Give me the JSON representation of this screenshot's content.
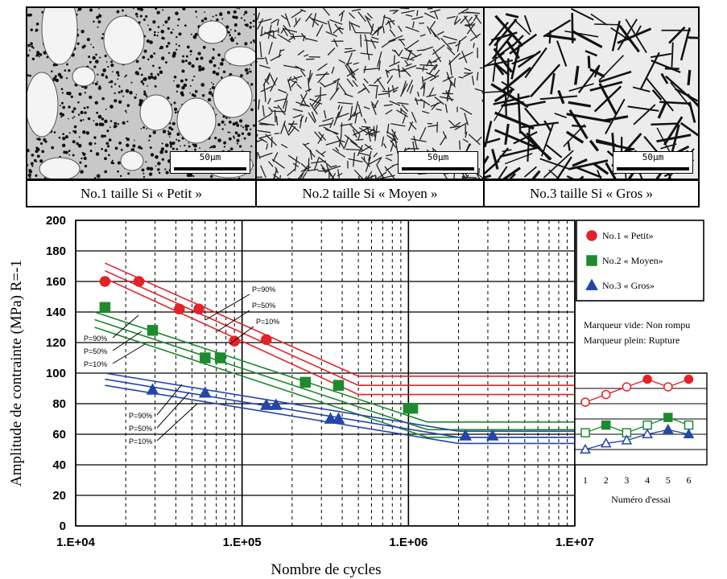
{
  "micrographs": [
    {
      "caption": "No.1 taille Si « Petit »",
      "scale": "50μm"
    },
    {
      "caption": "No.2 taille Si « Moyen »",
      "scale": "50μm"
    },
    {
      "caption": "No.3 taille Si « Gros »",
      "scale": "50μm"
    }
  ],
  "chart_data": [
    {
      "type": "scatter",
      "xlabel": "Nombre de cycles",
      "ylabel": "Amplitude de contrainte (MPa)   R=-1",
      "xscale": "log",
      "xlim": [
        10000,
        10000000
      ],
      "ylim": [
        0,
        200
      ],
      "xticklabels": [
        "1.E+04",
        "1.E+05",
        "1.E+06",
        "1.E+07"
      ],
      "yticks": [
        0,
        20,
        40,
        60,
        80,
        100,
        120,
        140,
        160,
        180,
        200
      ],
      "grid": true,
      "series": [
        {
          "name": "No.1 « Petit»",
          "color": "#e32227",
          "marker": "circle",
          "points": [
            [
              15000,
              160
            ],
            [
              24000,
              160
            ],
            [
              42000,
              142
            ],
            [
              55000,
              142
            ],
            [
              90000,
              121
            ],
            [
              140000,
              122
            ]
          ],
          "curves": [
            {
              "label": "P=90%",
              "knee": [
                500000,
                98
              ],
              "start": [
                15000,
                172
              ]
            },
            {
              "label": "P=50%",
              "knee": [
                500000,
                92
              ],
              "start": [
                15000,
                167
              ]
            },
            {
              "label": "P=10%",
              "knee": [
                500000,
                86
              ],
              "start": [
                15000,
                162
              ]
            }
          ]
        },
        {
          "name": "No.2 « Moyen»",
          "color": "#1e8a2e",
          "marker": "square",
          "points": [
            [
              15000,
              143
            ],
            [
              29000,
              128
            ],
            [
              60000,
              110
            ],
            [
              74000,
              110
            ],
            [
              240000,
              94
            ],
            [
              380000,
              92
            ],
            [
              1000000,
              77
            ],
            [
              1060000,
              77
            ]
          ],
          "curves": [
            {
              "label": "P=90%",
              "knee": [
                1300000,
                68
              ],
              "start": [
                13000,
                140
              ]
            },
            {
              "label": "P=50%",
              "knee": [
                1300000,
                63
              ],
              "start": [
                13000,
                135
              ]
            },
            {
              "label": "P=10%",
              "knee": [
                1300000,
                58
              ],
              "start": [
                13000,
                130
              ]
            }
          ]
        },
        {
          "name": "No.3 « Gros»",
          "color": "#2446a8",
          "marker": "triangle",
          "points": [
            [
              29000,
              89
            ],
            [
              60000,
              87
            ],
            [
              140000,
              79
            ],
            [
              160000,
              79
            ],
            [
              340000,
              70
            ],
            [
              380000,
              70
            ],
            [
              2200000,
              59
            ],
            [
              3200000,
              59
            ]
          ],
          "curves": [
            {
              "label": "P=90%",
              "knee": [
                2000000,
                62
              ],
              "start": [
                15000,
                100
              ]
            },
            {
              "label": "P=50%",
              "knee": [
                2000000,
                58
              ],
              "start": [
                15000,
                96
              ]
            },
            {
              "label": "P=10%",
              "knee": [
                2000000,
                54
              ],
              "start": [
                15000,
                92
              ]
            }
          ]
        }
      ],
      "legend_position": "top-right",
      "marker_note": [
        "Marqueur vide: Non rompu",
        "Marqueur plein: Rupture"
      ]
    },
    {
      "type": "line",
      "xlabel": "Numéro d'essai",
      "x": [
        1,
        2,
        3,
        4,
        5,
        6
      ],
      "ylim": [
        0,
        200
      ],
      "series": [
        {
          "name": "No.1 « Petit»",
          "color": "#e32227",
          "marker": "circle",
          "values": [
            81,
            86,
            91,
            96,
            91,
            96
          ],
          "filled": [
            false,
            false,
            false,
            true,
            false,
            true
          ]
        },
        {
          "name": "No.2 « Moyen»",
          "color": "#1e8a2e",
          "marker": "square",
          "values": [
            61,
            66,
            61,
            66,
            71,
            66
          ],
          "filled": [
            false,
            true,
            false,
            false,
            true,
            false
          ]
        },
        {
          "name": "No.3 « Gros»",
          "color": "#2446a8",
          "marker": "triangle",
          "values": [
            50,
            54,
            56,
            60,
            63,
            60
          ],
          "filled": [
            false,
            false,
            false,
            false,
            true,
            true
          ]
        }
      ]
    }
  ]
}
